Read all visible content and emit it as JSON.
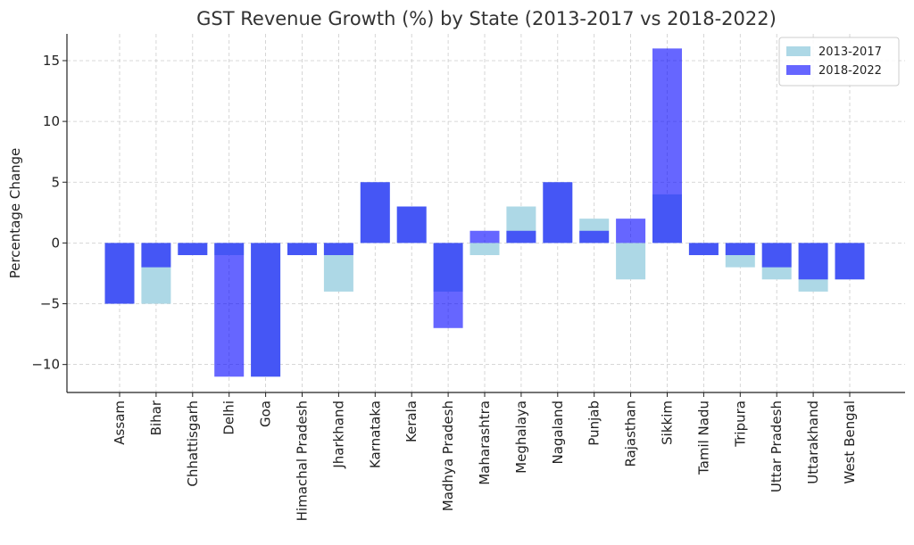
{
  "chart_data": {
    "type": "bar",
    "title": "GST Revenue Growth (%) by State (2013-2017 vs 2018-2022)",
    "xlabel": "",
    "ylabel": "Percentage Change",
    "ylim": [
      -12.3,
      17.2
    ],
    "yticks": [
      -10,
      -5,
      0,
      5,
      10,
      15
    ],
    "ytick_labels": [
      "−10",
      "−5",
      "0",
      "5",
      "10",
      "15"
    ],
    "grid": true,
    "legend": "top-right",
    "categories": [
      "Assam",
      "Bihar",
      "Chhattisgarh",
      "Delhi",
      "Goa",
      "Himachal Pradesh",
      "Jharkhand",
      "Karnataka",
      "Kerala",
      "Madhya Pradesh",
      "Maharashtra",
      "Meghalaya",
      "Nagaland",
      "Punjab",
      "Rajasthan",
      "Sikkim",
      "Tamil Nadu",
      "Tripura",
      "Uttar Pradesh",
      "Uttarakhand",
      "West Bengal"
    ],
    "series": [
      {
        "name": "2013-2017",
        "color": "#add8e6",
        "values": [
          -5,
          -5,
          -1,
          -1,
          -11,
          -1,
          -4,
          5,
          3,
          -4,
          -1,
          3,
          5,
          2,
          -3,
          4,
          -1,
          -2,
          -3,
          -4,
          -3
        ]
      },
      {
        "name": "2018-2022",
        "color": "#0000ff",
        "opacity": 0.6,
        "values": [
          -5,
          -2,
          -1,
          -11,
          -11,
          -1,
          -1,
          5,
          3,
          -7,
          1,
          1,
          5,
          1,
          2,
          16,
          -1,
          -1,
          -2,
          -3,
          -3
        ]
      }
    ]
  }
}
